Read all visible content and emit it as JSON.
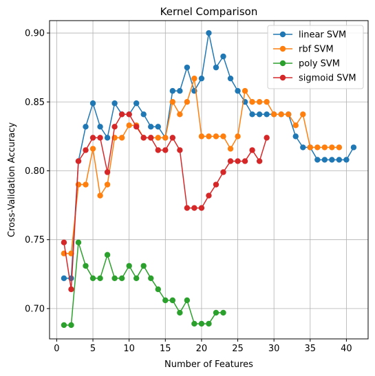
{
  "chart_data": {
    "type": "line",
    "title": "Kernel Comparison",
    "xlabel": "Number of Features",
    "ylabel": "Cross-Validation Accuracy",
    "xlim": [
      -0.99,
      43
    ],
    "ylim": [
      0.678,
      0.909
    ],
    "xticks": [
      0,
      5,
      10,
      15,
      20,
      25,
      30,
      35,
      40
    ],
    "yticks": [
      0.7,
      0.75,
      0.8,
      0.85,
      0.9
    ],
    "xtick_labels": [
      "0",
      "5",
      "10",
      "15",
      "20",
      "25",
      "30",
      "35",
      "40"
    ],
    "ytick_labels": [
      "0.70",
      "0.75",
      "0.80",
      "0.85",
      "0.90"
    ],
    "grid": true,
    "legend_position": "top-right",
    "series": [
      {
        "name": "linear SVM",
        "color": "#1f77b4",
        "x": [
          1,
          2,
          3,
          4,
          5,
          6,
          7,
          8,
          9,
          10,
          11,
          12,
          13,
          14,
          15,
          16,
          17,
          18,
          19,
          20,
          21,
          22,
          23,
          24,
          25,
          26,
          27,
          28,
          29,
          30,
          31,
          32,
          33,
          34,
          35,
          36,
          37,
          38,
          39,
          40,
          41
        ],
        "y": [
          0.722,
          0.722,
          0.807,
          0.832,
          0.849,
          0.832,
          0.824,
          0.849,
          0.841,
          0.841,
          0.849,
          0.841,
          0.832,
          0.832,
          0.824,
          0.858,
          0.858,
          0.875,
          0.858,
          0.867,
          0.9,
          0.875,
          0.883,
          0.867,
          0.858,
          0.85,
          0.841,
          0.841,
          0.841,
          0.841,
          0.841,
          0.841,
          0.825,
          0.817,
          0.817,
          0.808,
          0.808,
          0.808,
          0.808,
          0.808,
          0.817
        ]
      },
      {
        "name": "rbf SVM",
        "color": "#ff7f0e",
        "x": [
          1,
          2,
          3,
          4,
          5,
          6,
          7,
          8,
          9,
          10,
          11,
          12,
          13,
          14,
          15,
          16,
          17,
          18,
          19,
          20,
          21,
          22,
          23,
          24,
          25,
          26,
          27,
          28,
          29,
          30,
          31,
          32,
          33,
          34,
          35,
          36,
          37,
          38,
          39
        ],
        "y": [
          0.74,
          0.74,
          0.79,
          0.79,
          0.816,
          0.782,
          0.79,
          0.824,
          0.824,
          0.833,
          0.833,
          0.824,
          0.824,
          0.824,
          0.824,
          0.85,
          0.841,
          0.85,
          0.867,
          0.825,
          0.825,
          0.825,
          0.825,
          0.816,
          0.825,
          0.858,
          0.85,
          0.85,
          0.85,
          0.841,
          0.841,
          0.841,
          0.833,
          0.841,
          0.817,
          0.817,
          0.817,
          0.817,
          0.817
        ]
      },
      {
        "name": "poly SVM",
        "color": "#2ca02c",
        "x": [
          1,
          2,
          3,
          4,
          5,
          6,
          7,
          8,
          9,
          10,
          11,
          12,
          13,
          14,
          15,
          16,
          17,
          18,
          19,
          20,
          21,
          22,
          23
        ],
        "y": [
          0.688,
          0.688,
          0.748,
          0.731,
          0.722,
          0.722,
          0.739,
          0.722,
          0.722,
          0.731,
          0.722,
          0.731,
          0.722,
          0.714,
          0.706,
          0.706,
          0.697,
          0.706,
          0.689,
          0.689,
          0.689,
          0.697,
          0.697
        ]
      },
      {
        "name": "sigmoid SVM",
        "color": "#d62728",
        "x": [
          1,
          2,
          3,
          4,
          5,
          6,
          7,
          8,
          9,
          10,
          11,
          12,
          13,
          14,
          15,
          16,
          17,
          18,
          19,
          20,
          21,
          22,
          23,
          24,
          25,
          26,
          27,
          28,
          29
        ],
        "y": [
          0.748,
          0.714,
          0.807,
          0.815,
          0.824,
          0.824,
          0.799,
          0.832,
          0.841,
          0.841,
          0.832,
          0.824,
          0.824,
          0.815,
          0.815,
          0.824,
          0.815,
          0.773,
          0.773,
          0.773,
          0.782,
          0.79,
          0.799,
          0.807,
          0.807,
          0.807,
          0.815,
          0.807,
          0.824
        ]
      }
    ]
  }
}
